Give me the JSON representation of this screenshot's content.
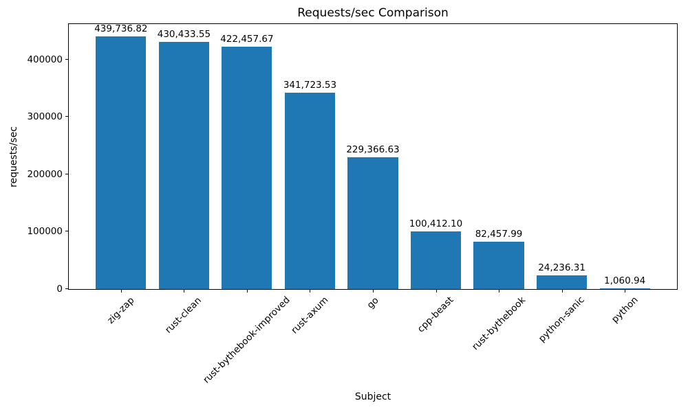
{
  "chart_data": {
    "type": "bar",
    "title": "Requests/sec Comparison",
    "xlabel": "Subject",
    "ylabel": "requests/sec",
    "categories": [
      "zig-zap",
      "rust-clean",
      "rust-bythebook-improved",
      "rust-axum",
      "go",
      "cpp-beast",
      "rust-bythebook",
      "python-sanic",
      "python"
    ],
    "values": [
      439736.82,
      430433.55,
      422457.67,
      341723.53,
      229366.63,
      100412.1,
      82457.99,
      24236.31,
      1060.94
    ],
    "bar_value_labels": [
      "439,736.82",
      "430,433.55",
      "422,457.67",
      "341,723.53",
      "229,366.63",
      "100,412.10",
      "82,457.99",
      "24,236.31",
      "1,060.94"
    ],
    "yticks": [
      0,
      100000,
      200000,
      300000,
      400000
    ],
    "ytick_labels": [
      "0",
      "100000",
      "200000",
      "300000",
      "400000"
    ],
    "ylim": [
      0,
      461724
    ],
    "bar_color": "#1f77b4",
    "axis_color": "#000000",
    "background_color": "#ffffff",
    "grid": false,
    "legend_position": "none",
    "x_tick_rotation_deg": 45
  }
}
